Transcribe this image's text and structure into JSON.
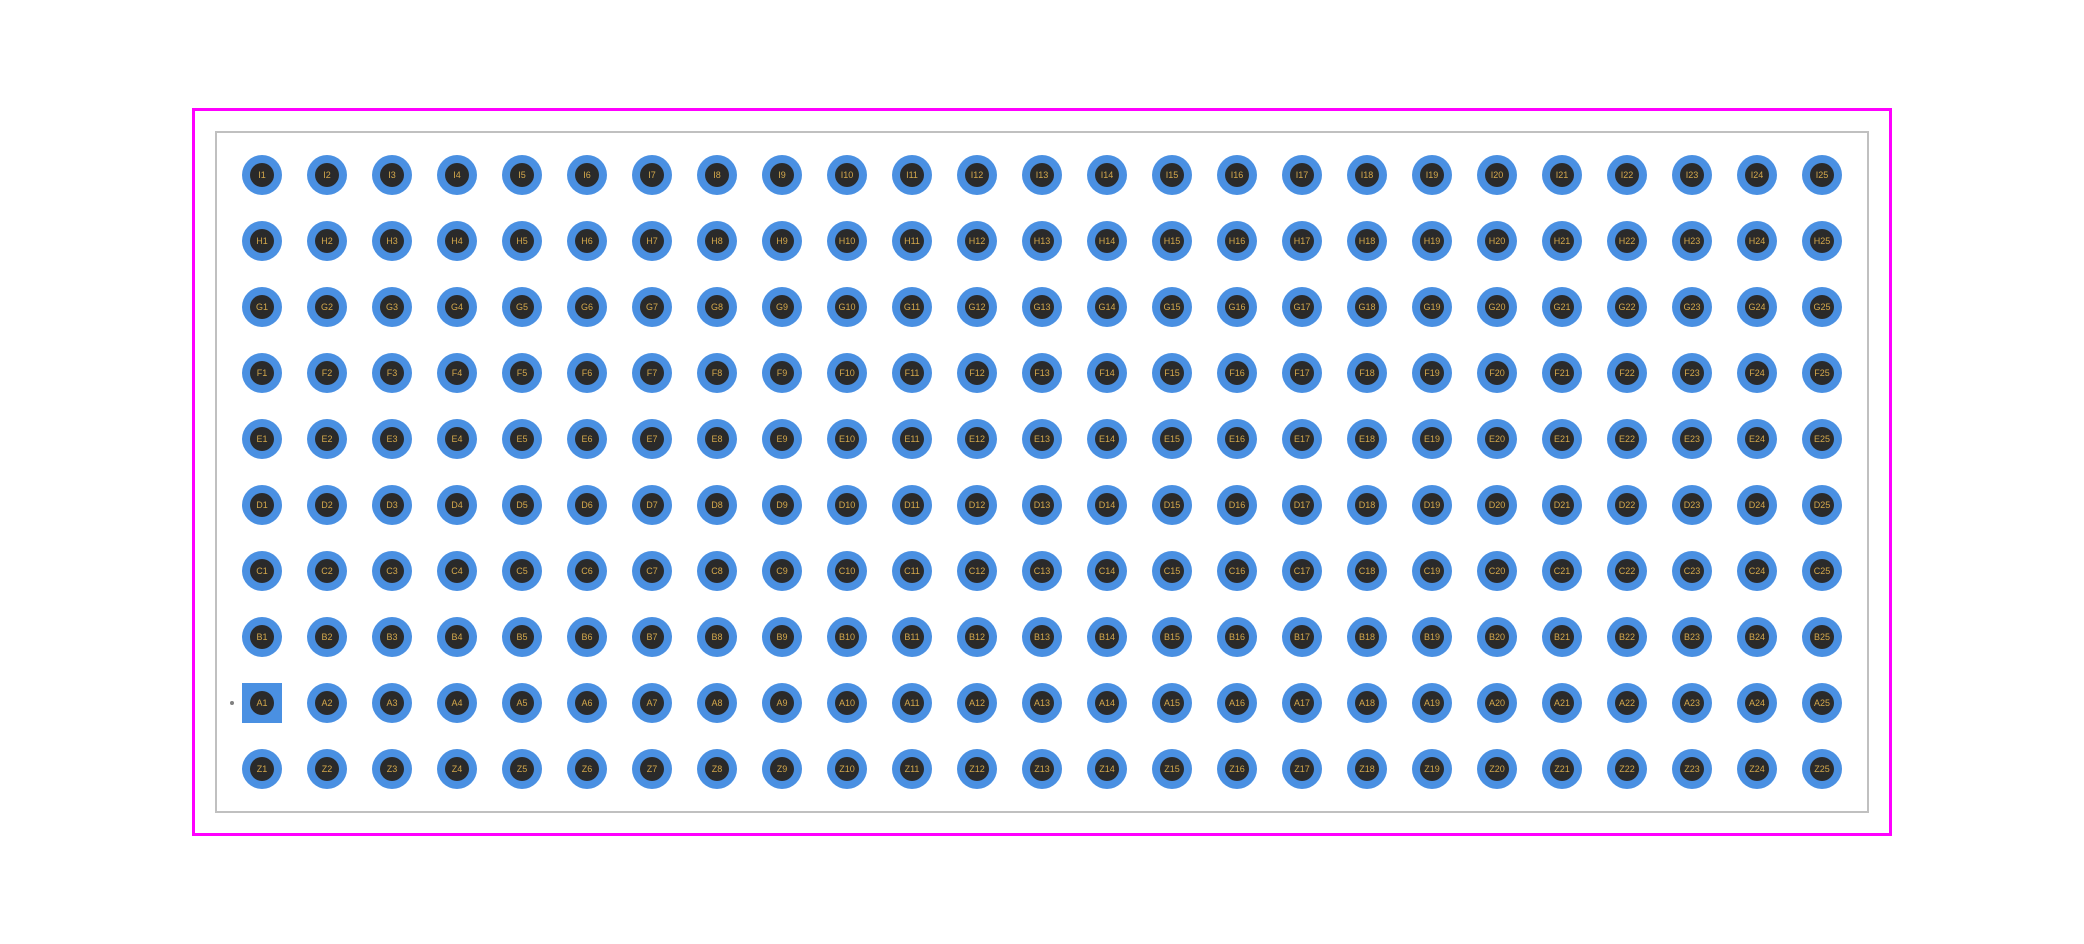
{
  "footprint": {
    "type": "pin-grid-array",
    "rows": [
      "I",
      "H",
      "G",
      "F",
      "E",
      "D",
      "C",
      "B",
      "A",
      "Z"
    ],
    "columns": 25,
    "pin1_row": "A",
    "pin1_col": 1,
    "pin1_square": true,
    "pad_outer_color": "#4a90e2",
    "pad_inner_color": "#2a2a2a",
    "label_color": "#d4a84b",
    "frame_outer_color": "#ff00ff",
    "frame_inner_color": "#c0c0c0",
    "background_color": "#ffffff",
    "label_fontsize": 9,
    "pad_diameter": 40,
    "hole_diameter": 24,
    "gap_horizontal": 25,
    "gap_vertical": 26
  }
}
